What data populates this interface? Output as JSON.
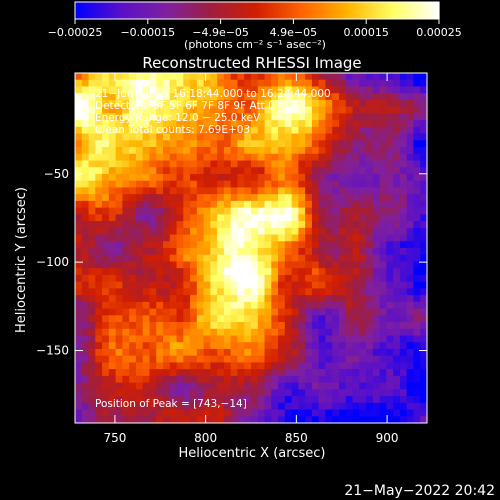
{
  "chart_data": {
    "type": "heatmap",
    "title": "Reconstructed RHESSI Image",
    "xlabel": "Heliocentric X (arcsec)",
    "ylabel": "Heliocentric Y (arcsec)",
    "xlim": [
      728,
      922
    ],
    "ylim": [
      -191,
      7
    ],
    "x_ticks": [
      750,
      800,
      850,
      900
    ],
    "x_tick_labels": [
      "750",
      "800",
      "850",
      "900"
    ],
    "y_ticks": [
      -50,
      -100,
      -150
    ],
    "y_tick_labels": [
      "−50",
      "−100",
      "−150"
    ],
    "colorbar": {
      "range": [
        -0.00025,
        0.00025
      ],
      "tick_labels": [
        "−0.00025",
        "−0.00015",
        "−4.9e−05",
        "4.9e−05",
        "0.00015",
        "0.00025"
      ],
      "units_label": "(photons cm⁻² s⁻¹ asec⁻²)",
      "colormap": [
        "#0000ff",
        "#5a10c8",
        "#8020a0",
        "#a01e3c",
        "#d21e00",
        "#ff6400",
        "#ffb400",
        "#ffff64",
        "#ffffff"
      ]
    },
    "annotations": [
      "21−Jun−2015 16:18:44.000 to 16:24:44.000",
      "Detectors: 3F 5F 6F 7F 8F 9F  Att 0",
      "Energy Range: 12.0 − 25.0 keV",
      "Clean     Total counts: 7.69E+03"
    ],
    "peak_label": "Position of Peak = [743,−14]",
    "peak": [
      743,
      -14
    ],
    "footer": "21−May−2022 20:42"
  }
}
